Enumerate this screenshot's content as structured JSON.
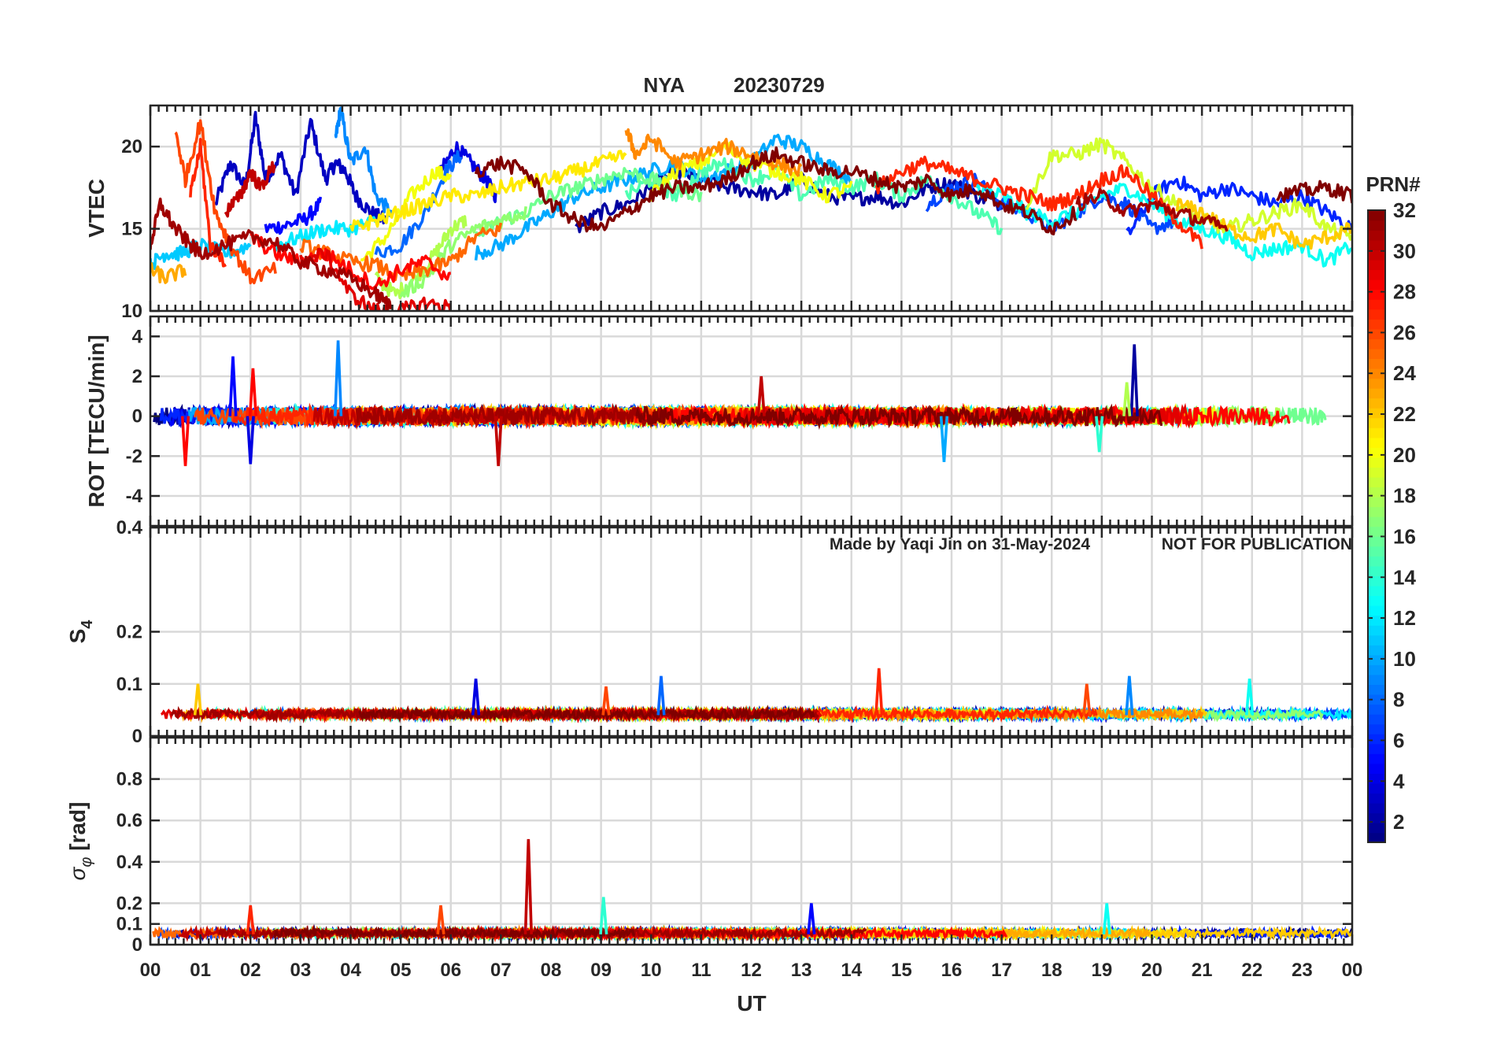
{
  "figure": {
    "title_station": "NYA",
    "title_date": "20230729",
    "title_color": "#ff0000",
    "watermark_author": "Made by Yaqi Jin on 31-May-2024",
    "watermark_notice": "NOT FOR PUBLICATION",
    "watermark_color": "#8c8c8c",
    "colorbar_title": "PRN#",
    "colormap": "jet"
  },
  "chart_data": [
    {
      "type": "line",
      "panel": "vtec",
      "ylabel": "VTEC",
      "ylim": [
        10,
        22.5
      ],
      "yticks": [
        10,
        15,
        20
      ],
      "xlim": [
        0,
        24
      ],
      "grid": true,
      "series": [
        {
          "prn": 3,
          "x": [
            1.3,
            1.6,
            1.9,
            2.1,
            2.3,
            2.6,
            2.9,
            3.2,
            3.5,
            3.7,
            3.9,
            4.1,
            4.4,
            4.7
          ],
          "y": [
            16.5,
            19,
            17.5,
            21.8,
            18,
            19.5,
            17,
            21.5,
            18,
            19,
            18.5,
            17,
            16,
            15.5
          ]
        },
        {
          "prn": 5,
          "x": [
            2.3,
            2.7,
            3.1,
            3.4
          ],
          "y": [
            15,
            15.2,
            15.6,
            16.5
          ]
        },
        {
          "prn": 9,
          "x": [
            3.7,
            3.8,
            4.0,
            4.3,
            4.5,
            4.8
          ],
          "y": [
            20.5,
            22.3,
            19,
            20,
            17,
            16
          ]
        },
        {
          "prn": 4,
          "x": [
            5.8,
            6.1,
            6.4,
            6.7,
            6.9
          ],
          "y": [
            18.5,
            20,
            19,
            18,
            17
          ]
        },
        {
          "prn": 8,
          "x": [
            4.5,
            5.0,
            5.5,
            5.9,
            6.2
          ],
          "y": [
            13.5,
            14,
            16,
            18.5,
            19.5
          ]
        },
        {
          "prn": 20,
          "x": [
            4.2,
            4.7,
            5.2,
            5.7,
            6.0
          ],
          "y": [
            13,
            14.5,
            17,
            18.5,
            18
          ]
        },
        {
          "prn": 18,
          "x": [
            4.5,
            4.9,
            5.3,
            5.7,
            6.0,
            6.3
          ],
          "y": [
            12,
            11,
            12,
            13.5,
            15,
            15.5
          ]
        },
        {
          "prn": 2,
          "x": [
            8.5,
            9.0,
            9.5,
            10.0,
            10.5,
            11.0,
            11.5,
            12.0,
            12.5,
            13.0,
            13.5,
            14.0,
            14.5,
            15.0,
            15.5,
            16.0,
            16.5,
            17.0
          ],
          "y": [
            15,
            16,
            16.5,
            17.5,
            18.5,
            18,
            17.5,
            17.3,
            17,
            18,
            17,
            16.8,
            17,
            16.5,
            17.5,
            17.8,
            17,
            16.5
          ]
        },
        {
          "prn": 7,
          "x": [
            15.5,
            16,
            16.5,
            17,
            17.5,
            18,
            18.5,
            19,
            19.5,
            20,
            20.5
          ],
          "y": [
            16.5,
            17.5,
            18,
            16.5,
            16,
            15,
            16,
            17,
            16.5,
            15,
            15.5
          ]
        },
        {
          "prn": 6,
          "x": [
            19.5,
            20,
            20.5,
            21,
            21.5,
            22,
            22.5,
            23,
            23.5,
            24
          ],
          "y": [
            14.5,
            17,
            18,
            17,
            17.5,
            17,
            16.5,
            17,
            16,
            15
          ]
        },
        {
          "prn": 10,
          "x": [
            6.5,
            7,
            7.5,
            8,
            8.5,
            9,
            9.5,
            10,
            10.5,
            11,
            11.5,
            12,
            12.5,
            13,
            13.5,
            14
          ],
          "y": [
            13.5,
            14,
            15,
            16,
            17,
            17.5,
            18,
            18.5,
            19,
            18,
            18.5,
            19,
            20.5,
            20,
            19,
            18
          ]
        },
        {
          "prn": 11,
          "x": [
            0,
            0.3,
            0.6,
            1,
            1.5,
            2
          ],
          "y": [
            12.8,
            13.5,
            13.5,
            14,
            13.5,
            14
          ]
        },
        {
          "prn": 12,
          "x": [
            2.5,
            3,
            3.5,
            4,
            4.5
          ],
          "y": [
            14,
            14.5,
            15,
            15,
            15.5
          ]
        },
        {
          "prn": 13,
          "x": [
            16.5,
            17,
            17.5,
            18,
            18.5,
            19,
            19.5,
            20,
            20.5,
            21,
            21.5,
            22,
            22.5,
            23,
            23.5,
            24
          ],
          "y": [
            17.5,
            17,
            16,
            15.5,
            16,
            17,
            17.5,
            16.5,
            15.5,
            15,
            14.5,
            13.5,
            13.8,
            14,
            13,
            14
          ]
        },
        {
          "prn": 15,
          "x": [
            9.5,
            10,
            10.5,
            11,
            11.5,
            12,
            12.5,
            13,
            13.5,
            14,
            14.5,
            15,
            15.5,
            16,
            16.5,
            17
          ],
          "y": [
            17,
            18,
            17,
            18.5,
            19,
            18,
            18.5,
            17,
            18,
            17.5,
            18,
            17,
            18,
            17,
            16,
            15
          ]
        },
        {
          "prn": 16,
          "x": [
            6.5,
            7,
            7.5,
            8,
            8.5,
            9,
            9.5,
            10,
            10.5,
            11
          ],
          "y": [
            14.5,
            15.5,
            16,
            17,
            17.5,
            18,
            18.5,
            18,
            17.5,
            17
          ]
        },
        {
          "prn": 17,
          "x": [
            5,
            5.5,
            6,
            6.5,
            7,
            7.5
          ],
          "y": [
            11,
            12,
            14,
            15,
            15.5,
            16
          ]
        },
        {
          "prn": 19,
          "x": [
            17.5,
            18,
            18.5,
            19,
            19.5,
            20,
            20.5,
            21,
            21.5,
            22,
            22.5,
            23,
            23.5,
            24
          ],
          "y": [
            16.5,
            19.5,
            19.5,
            20.2,
            19,
            17.5,
            16.5,
            15.5,
            15,
            15.5,
            16,
            16.5,
            15,
            14.5
          ]
        },
        {
          "prn": 20,
          "x": [
            10,
            10.5,
            11,
            11.5,
            12,
            12.5,
            13,
            13.5,
            14
          ],
          "y": [
            17,
            18.5,
            19,
            20,
            19,
            18.5,
            18,
            17,
            17.5
          ]
        },
        {
          "prn": 21,
          "x": [
            4,
            4.5,
            5,
            5.5,
            6,
            6.5,
            7,
            7.5,
            8,
            8.5,
            9,
            9.5
          ],
          "y": [
            15,
            15.5,
            16,
            16.5,
            17,
            17,
            17.5,
            17.8,
            18,
            18.5,
            19,
            19.5
          ]
        },
        {
          "prn": 22,
          "x": [
            20.5,
            21,
            21.5,
            22,
            22.5,
            23,
            23.5,
            24
          ],
          "y": [
            16.5,
            16,
            15,
            14.5,
            15,
            14,
            14.5,
            15
          ]
        },
        {
          "prn": 23,
          "x": [
            0,
            0.3,
            0.7
          ],
          "y": [
            12.5,
            12,
            12.5
          ]
        },
        {
          "prn": 24,
          "x": [
            9.5,
            9.7,
            10,
            10.5,
            11,
            11.5,
            12,
            12.5,
            13
          ],
          "y": [
            21,
            19.5,
            20.5,
            19,
            19.5,
            20,
            19.5,
            19,
            18.5
          ]
        },
        {
          "prn": 25,
          "x": [
            3,
            3.5,
            4,
            4.5,
            5,
            5.5,
            6,
            6.5,
            7
          ],
          "y": [
            14,
            13.5,
            13,
            12.8,
            12,
            12.5,
            13,
            14.5,
            15
          ]
        },
        {
          "prn": 26,
          "x": [
            0.5,
            0.7,
            1,
            1.3,
            1.6,
            2,
            2.5
          ],
          "y": [
            21,
            18,
            21.5,
            16,
            14,
            12,
            12.5
          ]
        },
        {
          "prn": 27,
          "x": [
            0.8,
            1.0,
            1.2,
            1.5
          ],
          "y": [
            17,
            20,
            14,
            13
          ]
        },
        {
          "prn": 27,
          "x": [
            14.5,
            15,
            15.5,
            16,
            16.5,
            17,
            17.5,
            18,
            18.5,
            19,
            19.5,
            20,
            20.5,
            21
          ],
          "y": [
            17.5,
            18.5,
            19,
            18.5,
            18,
            17.5,
            17,
            16.5,
            17,
            18,
            18.5,
            17,
            15.5,
            14
          ]
        },
        {
          "prn": 28,
          "x": [
            2,
            2.5,
            3,
            3.5,
            4,
            4.5,
            5,
            5.5,
            6
          ],
          "y": [
            14.5,
            13.5,
            13,
            13.5,
            12.5,
            11.5,
            12.5,
            13,
            12
          ]
        },
        {
          "prn": 29,
          "x": [
            3,
            3.5,
            4,
            4.5,
            5,
            5.5,
            6
          ],
          "y": [
            13,
            13.5,
            11,
            10,
            10,
            10.5,
            10.2
          ]
        },
        {
          "prn": 30,
          "x": [
            1.5,
            1.8,
            2,
            2.2,
            2.5
          ],
          "y": [
            16,
            17,
            18.5,
            17.5,
            19
          ]
        },
        {
          "prn": 31,
          "x": [
            0,
            0.2,
            0.5,
            0.8,
            1,
            1.5,
            2,
            2.5,
            3,
            3.5,
            4,
            4.5,
            4.8
          ],
          "y": [
            14,
            16.5,
            15,
            14,
            13.5,
            14,
            14.5,
            14.2,
            13,
            12.5,
            12,
            11,
            10.3
          ]
        },
        {
          "prn": 32,
          "x": [
            6.5,
            7,
            7.5,
            8,
            8.5,
            9,
            9.5,
            10,
            10.5,
            11,
            11.5,
            12,
            12.5,
            13,
            13.5,
            14,
            14.5,
            15,
            15.5,
            16,
            16.5,
            17,
            17.5,
            18,
            18.5
          ],
          "y": [
            18.5,
            19,
            18.5,
            16.5,
            15.5,
            15,
            16,
            17,
            17.5,
            17.5,
            18,
            19,
            19.5,
            19,
            18.5,
            18.5,
            18,
            17.5,
            18,
            17,
            17.5,
            16.5,
            16,
            15,
            16
          ]
        },
        {
          "prn": 32,
          "x": [
            22.5,
            23,
            23.5,
            24
          ],
          "y": [
            17,
            17.3,
            17.5,
            17
          ]
        },
        {
          "prn": 31,
          "x": [
            18.5,
            19,
            19.5,
            20,
            20.5,
            21,
            21.5
          ],
          "y": [
            16.5,
            17,
            16,
            16.5,
            16,
            15.5,
            15
          ]
        }
      ]
    },
    {
      "type": "line",
      "panel": "rot",
      "ylabel": "ROT [TECU/min]",
      "ylim": [
        -5.5,
        5
      ],
      "yticks": [
        -4,
        -2,
        0,
        2,
        4
      ],
      "xlim": [
        0,
        24
      ],
      "grid": true,
      "spikes": [
        {
          "prn": 9,
          "x": 3.75,
          "y": 3.8
        },
        {
          "prn": 5,
          "x": 1.65,
          "y": 3.0
        },
        {
          "prn": 28,
          "x": 2.05,
          "y": 2.4
        },
        {
          "prn": 28,
          "x": 0.7,
          "y": -2.5
        },
        {
          "prn": 4,
          "x": 2.0,
          "y": -2.4
        },
        {
          "prn": 30,
          "x": 6.95,
          "y": -2.5
        },
        {
          "prn": 2,
          "x": 19.65,
          "y": 3.6
        },
        {
          "prn": 10,
          "x": 15.85,
          "y": -2.3
        },
        {
          "prn": 30,
          "x": 12.2,
          "y": 2.0
        },
        {
          "prn": 14,
          "x": 18.95,
          "y": -1.8
        },
        {
          "prn": 18,
          "x": 19.5,
          "y": 1.7
        }
      ]
    },
    {
      "type": "line",
      "panel": "s4",
      "ylabel": "S",
      "ylabel_subscript": "4",
      "ylim": [
        0,
        0.4
      ],
      "yticks": [
        0,
        0.1,
        0.2,
        0.4
      ],
      "xlim": [
        0,
        24
      ],
      "grid": true,
      "baseline": 0.04,
      "spikes": [
        {
          "prn": 27,
          "x": 14.55,
          "y": 0.13
        },
        {
          "prn": 9,
          "x": 19.55,
          "y": 0.115
        },
        {
          "prn": 8,
          "x": 10.2,
          "y": 0.115
        },
        {
          "prn": 4,
          "x": 6.5,
          "y": 0.11
        },
        {
          "prn": 26,
          "x": 18.7,
          "y": 0.1
        },
        {
          "prn": 22,
          "x": 0.95,
          "y": 0.1
        },
        {
          "prn": 13,
          "x": 21.95,
          "y": 0.11
        },
        {
          "prn": 26,
          "x": 9.1,
          "y": 0.095
        }
      ]
    },
    {
      "type": "line",
      "panel": "sigma_phi",
      "ylabel": "σ",
      "ylabel_subscript": "φ",
      "ylabel_unit": "[rad]",
      "ylim": [
        0,
        1
      ],
      "yticks": [
        0,
        0.1,
        0.2,
        0.4,
        0.6,
        0.8
      ],
      "xlim": [
        0,
        24
      ],
      "grid": true,
      "baseline": 0.05,
      "spikes": [
        {
          "prn": 30,
          "x": 7.55,
          "y": 0.51
        },
        {
          "prn": 14,
          "x": 9.05,
          "y": 0.23
        },
        {
          "prn": 5,
          "x": 13.2,
          "y": 0.2
        },
        {
          "prn": 27,
          "x": 2.0,
          "y": 0.19
        },
        {
          "prn": 26,
          "x": 5.8,
          "y": 0.19
        },
        {
          "prn": 13,
          "x": 19.1,
          "y": 0.2
        }
      ]
    }
  ],
  "xaxis": {
    "label": "UT",
    "ticklabels": [
      "00",
      "01",
      "02",
      "03",
      "04",
      "05",
      "06",
      "07",
      "08",
      "09",
      "10",
      "11",
      "12",
      "13",
      "14",
      "15",
      "16",
      "17",
      "18",
      "19",
      "20",
      "21",
      "22",
      "23",
      "00"
    ]
  },
  "colorbar": {
    "range": [
      1,
      32
    ],
    "ticklabels": [
      "2",
      "4",
      "6",
      "8",
      "10",
      "12",
      "14",
      "16",
      "18",
      "20",
      "22",
      "24",
      "26",
      "28",
      "30",
      "32"
    ]
  }
}
